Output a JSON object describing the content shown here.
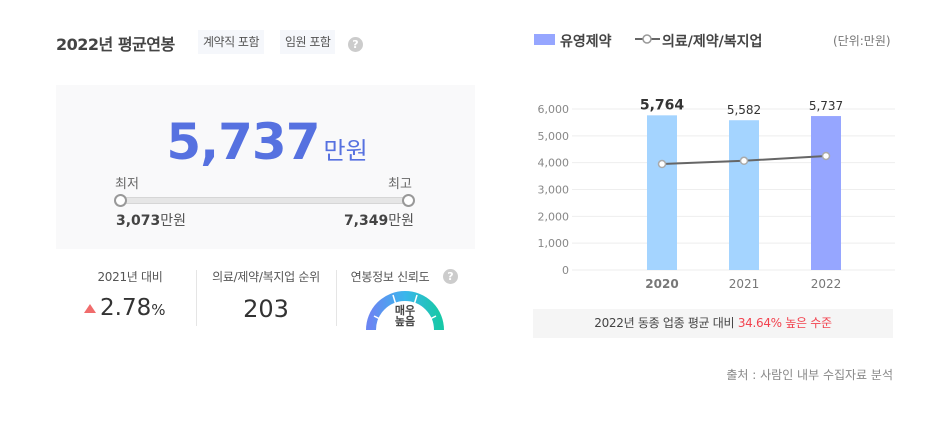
{
  "header": {
    "title": "2022년 평균연봉",
    "tags": [
      "계약직 포함",
      "임원 포함"
    ],
    "help_icon": "question-circle-icon"
  },
  "summary": {
    "average_value": "5,737",
    "average_unit": "만원",
    "min_label": "최저",
    "max_label": "최고",
    "min_value": "3,073",
    "max_value": "7,349",
    "value_unit": "만원"
  },
  "stats": {
    "yoy_label": "2021년 대비",
    "yoy_value": "2.78",
    "yoy_symbol": "%",
    "yoy_direction": "up",
    "rank_label": "의료/제약/복지업 순위",
    "rank_value": "203",
    "reliability_label": "연봉정보 신뢰도",
    "reliability_line1": "매우",
    "reliability_line2": "높음"
  },
  "legend": {
    "bar_label": "유영제약",
    "line_label": "의료/제약/복지업",
    "unit": "(단위:만원)"
  },
  "colors": {
    "accent": "#5671e0",
    "bar_past": "#a4d4ff",
    "bar_current": "#96a6ff",
    "line": "#666666",
    "highlight": "#f2434f",
    "up_arrow": "#f06c6c"
  },
  "comparison": {
    "prefix": "2022년 동종 업종 평균 대비 ",
    "highlight": "34.64% 높은 수준"
  },
  "source": "출처 : 사람인 내부 수집자료 분석",
  "chart_data": {
    "type": "bar",
    "title": "",
    "categories": [
      "2020",
      "2021",
      "2022"
    ],
    "series": [
      {
        "name": "유영제약",
        "type": "bar",
        "values": [
          5764,
          5582,
          5737
        ],
        "labels": [
          "5,764",
          "5,582",
          "5,737"
        ]
      },
      {
        "name": "의료/제약/복지업",
        "type": "line",
        "values": [
          3950,
          4070,
          4250
        ]
      }
    ],
    "xlabel": "",
    "ylabel": "",
    "unit": "만원",
    "ylim": [
      0,
      6000
    ],
    "yticks": [
      "0",
      "1,000",
      "2,000",
      "3,000",
      "4,000",
      "5,000",
      "6,000"
    ],
    "grid": true,
    "legend_position": "top"
  }
}
